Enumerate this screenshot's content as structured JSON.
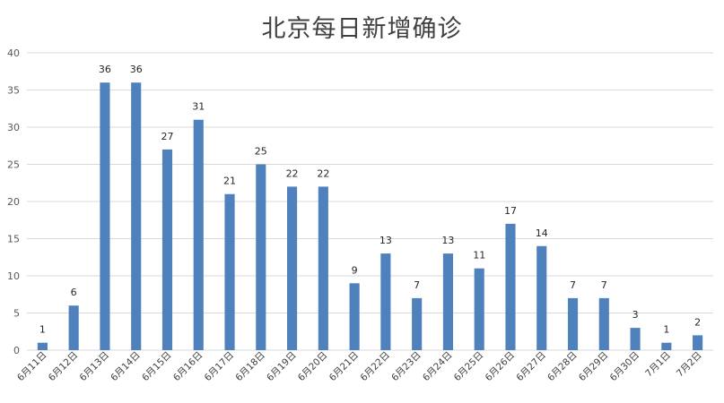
{
  "chart_data": {
    "type": "bar",
    "title": "北京每日新增确诊",
    "xlabel": "",
    "ylabel": "",
    "ylim": [
      0,
      40
    ],
    "yticks": [
      0,
      5,
      10,
      15,
      20,
      25,
      30,
      35,
      40
    ],
    "grid": true,
    "legend": "none",
    "bar_color": "#4f81bd",
    "grid_color": "#d9d9d9",
    "categories": [
      "6月11日",
      "6月12日",
      "6月13日",
      "6月14日",
      "6月15日",
      "6月16日",
      "6月17日",
      "6月18日",
      "6月19日",
      "6月20日",
      "6月21日",
      "6月22日",
      "6月23日",
      "6月24日",
      "6月25日",
      "6月26日",
      "6月27日",
      "6月28日",
      "6月29日",
      "6月30日",
      "7月1日",
      "7月2日"
    ],
    "values": [
      1,
      6,
      36,
      36,
      27,
      31,
      21,
      25,
      22,
      22,
      9,
      13,
      7,
      13,
      11,
      17,
      14,
      7,
      7,
      3,
      1,
      2
    ]
  }
}
